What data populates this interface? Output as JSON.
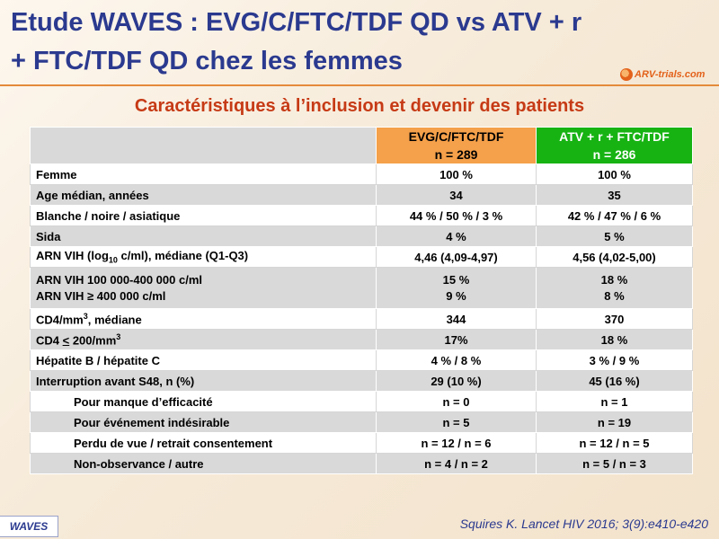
{
  "slide": {
    "title_line1": "Etude WAVES : EVG/C/FTC/TDF QD vs ATV + r",
    "title_line2": "+ FTC/TDF QD chez les femmes",
    "logo_text": "ARV-trials.com",
    "subtitle": "Caractéristiques à l’inclusion et devenir des patients",
    "study_tag": "WAVES",
    "citation": "Squires K. Lancet HIV 2016; 3(9):e410-e420",
    "colors": {
      "title": "#2b3a8f",
      "subtitle": "#c63a15",
      "arm1": "#f5a04a",
      "arm2": "#17b313",
      "accent": "#e48a3a"
    }
  },
  "table": {
    "arm1": {
      "name": "EVG/C/FTC/TDF",
      "n": "n = 289"
    },
    "arm2": {
      "name": "ATV + r + FTC/TDF",
      "n": "n = 286"
    },
    "rows": [
      {
        "label": "Femme",
        "a1": "100 %",
        "a2": "100 %"
      },
      {
        "label": "Age médian, années",
        "a1": "34",
        "a2": "35"
      },
      {
        "label": "Blanche / noire / asiatique",
        "a1": "44 % / 50 % / 3 %",
        "a2": "42 % / 47 % / 6 %"
      },
      {
        "label": "Sida",
        "a1": "4 %",
        "a2": "5 %"
      },
      {
        "label_pre": "ARN VIH (log",
        "label_sub": "10",
        "label_post": " c/ml), médiane (Q1-Q3)",
        "a1": "4,46 (4,09-4,97)",
        "a2": "4,56 (4,02-5,00)"
      },
      {
        "label1": "ARN VIH 100 000-400 000 c/ml",
        "label2": "ARN VIH ≥ 400 000 c/ml",
        "a1_1": "15 %",
        "a1_2": "9 %",
        "a2_1": "18 %",
        "a2_2": "8 %"
      },
      {
        "label_pre": "CD4/mm",
        "label_sup": "3",
        "label_post": ", médiane",
        "a1": "344",
        "a2": "370"
      },
      {
        "label_pre": "CD4 ",
        "label_u": "<",
        "label_mid": " 200/mm",
        "label_sup": "3",
        "a1": "17%",
        "a2": "18 %"
      },
      {
        "label": "Hépatite B / hépatite C",
        "a1": "4 % / 8 %",
        "a2": "3 % / 9 %"
      },
      {
        "label": "Interruption avant S48, n (%)",
        "a1": "29 (10 %)",
        "a2": "45 (16 %)"
      },
      {
        "label": "Pour manque d’efficacité",
        "a1": "n = 0",
        "a2": "n = 1"
      },
      {
        "label": "Pour événement indésirable",
        "a1": "n = 5",
        "a2": "n = 19"
      },
      {
        "label": "Perdu de vue / retrait consentement",
        "a1": "n = 12 / n = 6",
        "a2": "n = 12 / n = 5"
      },
      {
        "label": "Non-observance / autre",
        "a1": "n = 4 / n = 2",
        "a2": "n = 5 / n = 3"
      }
    ]
  }
}
